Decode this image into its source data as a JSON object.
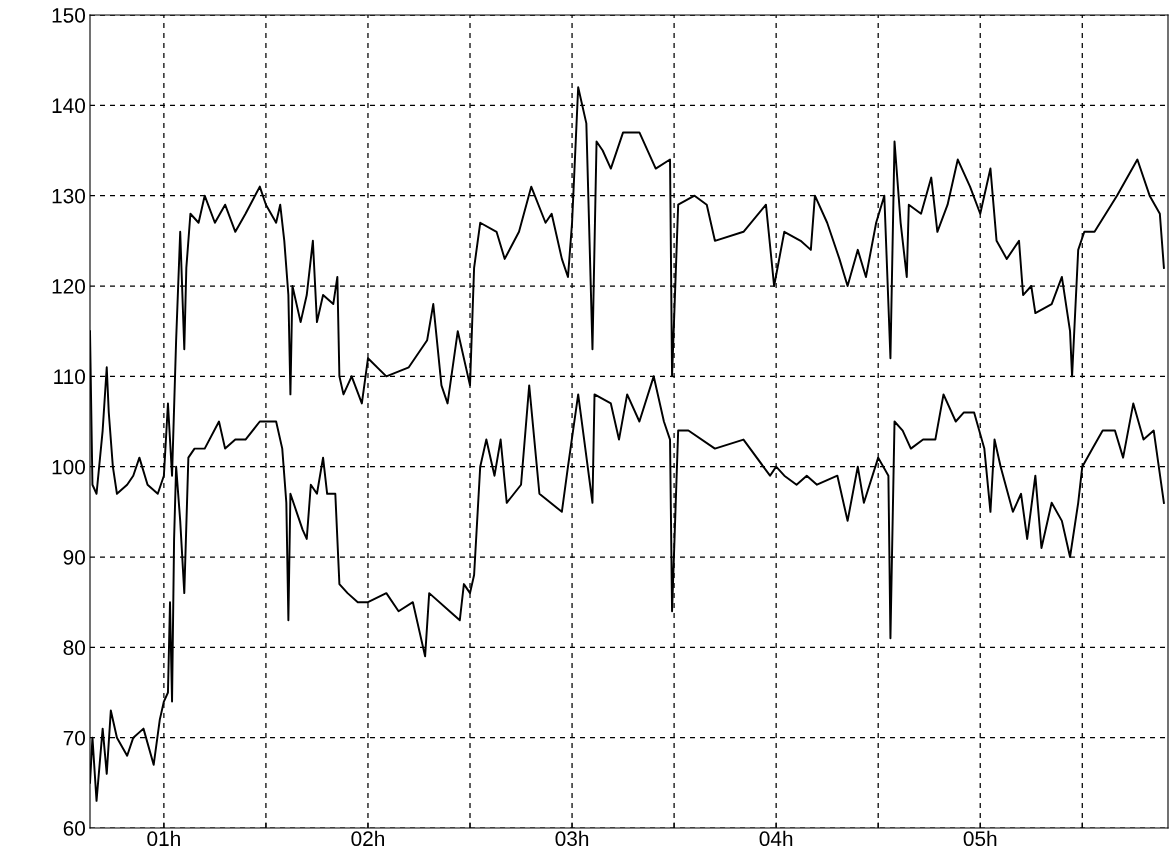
{
  "chart_data": {
    "type": "line",
    "xlim": [
      0.638,
      5.92
    ],
    "ylim": [
      60,
      150
    ],
    "xticks": [
      {
        "value": 1,
        "label": "01h"
      },
      {
        "value": 1.5,
        "label": null
      },
      {
        "value": 2,
        "label": "02h"
      },
      {
        "value": 2.5,
        "label": null
      },
      {
        "value": 3,
        "label": "03h"
      },
      {
        "value": 3.5,
        "label": null
      },
      {
        "value": 4,
        "label": "04h"
      },
      {
        "value": 4.5,
        "label": null
      },
      {
        "value": 5,
        "label": "05h"
      },
      {
        "value": 5.5,
        "label": null
      }
    ],
    "yticks": [
      60,
      70,
      80,
      90,
      100,
      110,
      120,
      130,
      140,
      150
    ],
    "grid": true,
    "line_style": "solid",
    "marker": "none",
    "series": [
      {
        "color": "#000000",
        "x": [
          0.638,
          0.65,
          0.67,
          0.7,
          0.72,
          0.73,
          0.75,
          0.77,
          0.82,
          0.85,
          0.88,
          0.92,
          0.97,
          1.0,
          1.02,
          1.04,
          1.06,
          1.08,
          1.1,
          1.11,
          1.13,
          1.17,
          1.2,
          1.25,
          1.3,
          1.35,
          1.4,
          1.47,
          1.5,
          1.55,
          1.57,
          1.59,
          1.61,
          1.62,
          1.63,
          1.67,
          1.7,
          1.73,
          1.75,
          1.78,
          1.83,
          1.85,
          1.86,
          1.88,
          1.92,
          1.97,
          2.0,
          2.09,
          2.2,
          2.29,
          2.32,
          2.36,
          2.39,
          2.44,
          2.5,
          2.52,
          2.55,
          2.63,
          2.67,
          2.74,
          2.8,
          2.87,
          2.9,
          2.95,
          2.98,
          3.0,
          3.03,
          3.07,
          3.1,
          3.12,
          3.15,
          3.19,
          3.25,
          3.33,
          3.41,
          3.48,
          3.49,
          3.52,
          3.6,
          3.66,
          3.7,
          3.84,
          3.95,
          3.99,
          4.04,
          4.12,
          4.17,
          4.19,
          4.25,
          4.31,
          4.35,
          4.4,
          4.44,
          4.49,
          4.53,
          4.56,
          4.58,
          4.61,
          4.64,
          4.65,
          4.71,
          4.76,
          4.79,
          4.84,
          4.89,
          4.95,
          5.0,
          5.05,
          5.08,
          5.13,
          5.19,
          5.21,
          5.25,
          5.27,
          5.35,
          5.4,
          5.44,
          5.45,
          5.48,
          5.51,
          5.56,
          5.67,
          5.77,
          5.83,
          5.88,
          5.9
        ],
        "values": [
          115,
          98,
          97,
          104,
          111,
          106,
          100,
          97,
          98,
          99,
          101,
          98,
          97,
          99,
          107,
          99,
          114,
          126,
          113,
          122,
          128,
          127,
          130,
          127,
          129,
          126,
          128,
          131,
          129,
          127,
          129,
          125,
          119,
          108,
          120,
          116,
          119,
          125,
          116,
          119,
          118,
          121,
          110,
          108,
          110,
          107,
          112,
          110,
          111,
          114,
          118,
          109,
          107,
          115,
          109,
          122,
          127,
          126,
          123,
          126,
          131,
          127,
          128,
          123,
          121,
          127,
          142,
          138,
          113,
          136,
          135,
          133,
          137,
          137,
          133,
          134,
          110,
          129,
          130,
          129,
          125,
          126,
          129,
          120,
          126,
          125,
          124,
          130,
          127,
          123,
          120,
          124,
          121,
          127,
          130,
          112,
          136,
          127,
          121,
          129,
          128,
          132,
          126,
          129,
          134,
          131,
          128,
          133,
          125,
          123,
          125,
          119,
          120,
          117,
          118,
          121,
          115,
          110,
          124,
          126,
          126,
          130,
          134,
          130,
          128,
          122
        ]
      },
      {
        "color": "#000000",
        "x": [
          0.638,
          0.65,
          0.67,
          0.7,
          0.72,
          0.74,
          0.77,
          0.82,
          0.85,
          0.9,
          0.95,
          0.98,
          1.0,
          1.02,
          1.03,
          1.04,
          1.05,
          1.06,
          1.08,
          1.1,
          1.12,
          1.15,
          1.2,
          1.27,
          1.3,
          1.35,
          1.4,
          1.47,
          1.55,
          1.58,
          1.6,
          1.61,
          1.62,
          1.65,
          1.68,
          1.7,
          1.72,
          1.75,
          1.78,
          1.8,
          1.84,
          1.86,
          1.9,
          1.95,
          2.0,
          2.09,
          2.15,
          2.22,
          2.28,
          2.3,
          2.4,
          2.45,
          2.47,
          2.5,
          2.52,
          2.55,
          2.58,
          2.62,
          2.65,
          2.68,
          2.75,
          2.79,
          2.84,
          2.95,
          2.98,
          3.03,
          3.1,
          3.11,
          3.19,
          3.23,
          3.27,
          3.33,
          3.4,
          3.45,
          3.48,
          3.49,
          3.52,
          3.57,
          3.7,
          3.84,
          3.97,
          4.0,
          4.04,
          4.1,
          4.15,
          4.2,
          4.3,
          4.35,
          4.4,
          4.43,
          4.5,
          4.55,
          4.56,
          4.58,
          4.62,
          4.66,
          4.72,
          4.78,
          4.82,
          4.88,
          4.92,
          4.97,
          5.02,
          5.05,
          5.07,
          5.1,
          5.16,
          5.2,
          5.23,
          5.27,
          5.3,
          5.35,
          5.4,
          5.44,
          5.48,
          5.5,
          5.55,
          5.6,
          5.66,
          5.7,
          5.75,
          5.8,
          5.85,
          5.9
        ],
        "values": [
          65,
          70,
          63,
          71,
          66,
          73,
          70,
          68,
          70,
          71,
          67,
          72,
          74,
          75,
          85,
          74,
          92,
          100,
          94,
          86,
          101,
          102,
          102,
          105,
          102,
          103,
          103,
          105,
          105,
          102,
          96,
          83,
          97,
          95,
          93,
          92,
          98,
          97,
          101,
          97,
          97,
          87,
          86,
          85,
          85,
          86,
          84,
          85,
          79,
          86,
          84,
          83,
          87,
          86,
          88,
          100,
          103,
          99,
          103,
          96,
          98,
          109,
          97,
          95,
          100,
          108,
          96,
          108,
          107,
          103,
          108,
          105,
          110,
          105,
          103,
          84,
          104,
          104,
          102,
          103,
          99,
          100,
          99,
          98,
          99,
          98,
          99,
          94,
          100,
          96,
          101,
          99,
          81,
          105,
          104,
          102,
          103,
          103,
          108,
          105,
          106,
          106,
          102,
          95,
          103,
          100,
          95,
          97,
          92,
          99,
          91,
          96,
          94,
          90,
          96,
          100,
          102,
          104,
          104,
          101,
          107,
          103,
          104,
          96
        ]
      }
    ]
  }
}
